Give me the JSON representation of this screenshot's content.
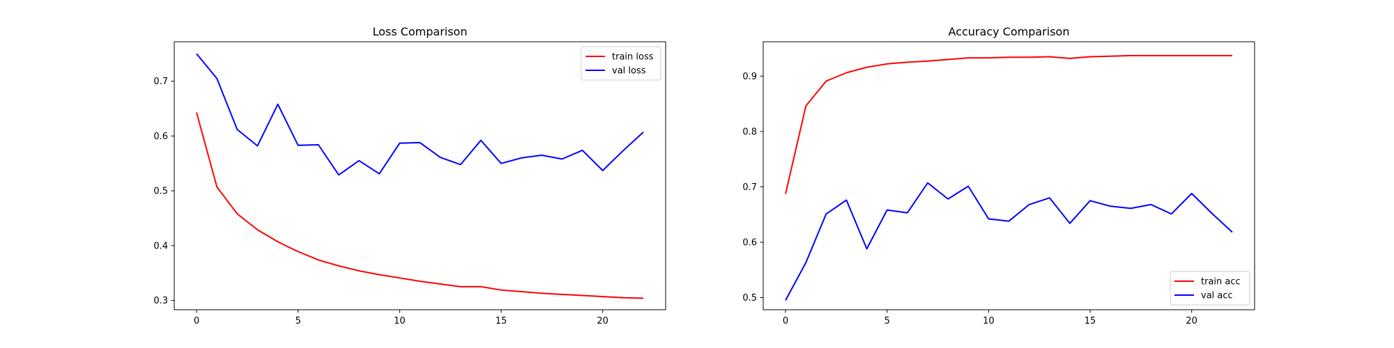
{
  "chart_data": [
    {
      "type": "line",
      "title": "Loss Comparison",
      "xlabel": "",
      "ylabel": "",
      "xlim": [
        -1.1,
        23.1
      ],
      "ylim": [
        0.283,
        0.772
      ],
      "xticks": [
        "0",
        "5",
        "10",
        "15",
        "20"
      ],
      "yticks": [
        "0.3",
        "0.4",
        "0.5",
        "0.6",
        "0.7"
      ],
      "legend_position": "upper-right",
      "x": [
        0,
        1,
        2,
        3,
        4,
        5,
        6,
        7,
        8,
        9,
        10,
        11,
        12,
        13,
        14,
        15,
        16,
        17,
        18,
        19,
        20,
        21,
        22
      ],
      "series": [
        {
          "name": "train loss",
          "color": "#ff0000",
          "values": [
            0.643,
            0.507,
            0.458,
            0.429,
            0.407,
            0.389,
            0.374,
            0.363,
            0.354,
            0.347,
            0.341,
            0.335,
            0.33,
            0.325,
            0.325,
            0.319,
            0.316,
            0.313,
            0.311,
            0.309,
            0.307,
            0.305,
            0.304
          ]
        },
        {
          "name": "val loss",
          "color": "#0000ff",
          "values": [
            0.75,
            0.705,
            0.612,
            0.582,
            0.658,
            0.583,
            0.584,
            0.529,
            0.555,
            0.531,
            0.587,
            0.588,
            0.561,
            0.548,
            0.592,
            0.55,
            0.56,
            0.565,
            0.558,
            0.574,
            0.537,
            0.573,
            0.607
          ]
        }
      ]
    },
    {
      "type": "line",
      "title": "Accuracy Comparison",
      "xlabel": "",
      "ylabel": "",
      "xlim": [
        -1.1,
        23.1
      ],
      "ylim": [
        0.478,
        0.962
      ],
      "xticks": [
        "0",
        "5",
        "10",
        "15",
        "20"
      ],
      "yticks": [
        "0.5",
        "0.6",
        "0.7",
        "0.8",
        "0.9"
      ],
      "legend_position": "lower-right",
      "x": [
        0,
        1,
        2,
        3,
        4,
        5,
        6,
        7,
        8,
        9,
        10,
        11,
        12,
        13,
        14,
        15,
        16,
        17,
        18,
        19,
        20,
        21,
        22
      ],
      "series": [
        {
          "name": "train acc",
          "color": "#ff0000",
          "values": [
            0.687,
            0.846,
            0.891,
            0.906,
            0.916,
            0.922,
            0.925,
            0.927,
            0.93,
            0.933,
            0.933,
            0.934,
            0.934,
            0.935,
            0.932,
            0.935,
            0.936,
            0.937,
            0.937,
            0.937,
            0.937,
            0.937,
            0.937
          ]
        },
        {
          "name": "val acc",
          "color": "#0000ff",
          "values": [
            0.495,
            0.563,
            0.651,
            0.676,
            0.588,
            0.658,
            0.653,
            0.707,
            0.678,
            0.701,
            0.642,
            0.638,
            0.668,
            0.68,
            0.634,
            0.675,
            0.665,
            0.661,
            0.668,
            0.651,
            0.688,
            0.652,
            0.618
          ]
        }
      ]
    }
  ]
}
